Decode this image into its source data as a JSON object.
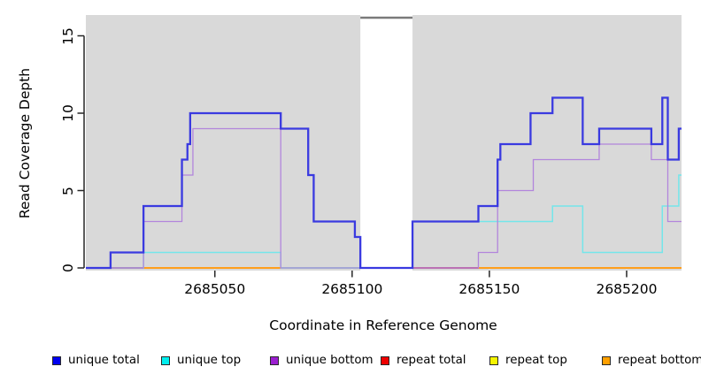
{
  "chart_data": {
    "type": "line",
    "subtype": "step-coverage",
    "xlabel": "Coordinate in Reference Genome",
    "ylabel": "Read Coverage Depth",
    "xlim": [
      2685003,
      2685220
    ],
    "ylim": [
      0,
      16.3
    ],
    "grid": false,
    "plot_bg_color": "#d9d9d9",
    "gap_region": {
      "from": 2685103,
      "to": 2685122,
      "top_border_color": "#7a7a7a"
    },
    "shaded_regions": [
      {
        "from": 2685003,
        "to": 2685103
      },
      {
        "from": 2685122,
        "to": 2685220
      }
    ],
    "x_ticks": [
      {
        "coord": 2685050,
        "label": "2685050"
      },
      {
        "coord": 2685100,
        "label": "2685100"
      },
      {
        "coord": 2685150,
        "label": "2685150"
      },
      {
        "coord": 2685200,
        "label": "2685200"
      }
    ],
    "y_ticks": [
      {
        "value": 0,
        "label": "0"
      },
      {
        "value": 5,
        "label": "5"
      },
      {
        "value": 10,
        "label": "10"
      },
      {
        "value": 15,
        "label": "15"
      }
    ],
    "legend": [
      {
        "label": "unique total",
        "color": "#0000f0"
      },
      {
        "label": "unique top",
        "color": "#00eeee"
      },
      {
        "label": "unique bottom",
        "color": "#9b1fd0"
      },
      {
        "label": "repeat total",
        "color": "#ee0000"
      },
      {
        "label": "repeat top",
        "color": "#f5f500"
      },
      {
        "label": "repeat bottom",
        "color": "#ffa000"
      }
    ],
    "baseline_zero_segments": [
      {
        "from": 2685012,
        "to": 2685024,
        "color": "#c7516f"
      },
      {
        "from": 2685024,
        "to": 2685074,
        "color": "#ff9e1c"
      },
      {
        "from": 2685074,
        "to": 2685103,
        "color": "#a6d7a7"
      },
      {
        "from": 2685122,
        "to": 2685146,
        "color": "#c7516f"
      },
      {
        "from": 2685146,
        "to": 2685220,
        "color": "#ff9e1c"
      }
    ],
    "series": [
      {
        "name": "repeat total",
        "color": "#ee0000",
        "width": 1.2,
        "draw": false,
        "points": [
          [
            2685003,
            0
          ],
          [
            2685220,
            0
          ]
        ]
      },
      {
        "name": "repeat top",
        "color": "#f5f500",
        "width": 1.2,
        "draw": false,
        "points": [
          [
            2685003,
            0
          ],
          [
            2685220,
            0
          ]
        ]
      },
      {
        "name": "repeat bottom",
        "color": "#ff9e1c",
        "width": 1.2,
        "draw": false,
        "points": [
          [
            2685003,
            0
          ],
          [
            2685220,
            0
          ]
        ]
      },
      {
        "name": "unique top",
        "color": "#74e6ea",
        "width": 1.5,
        "draw": true,
        "points": [
          [
            2685003,
            0
          ],
          [
            2685024,
            1
          ],
          [
            2685074,
            0
          ],
          [
            2685122,
            3
          ],
          [
            2685173,
            4
          ],
          [
            2685184,
            1
          ],
          [
            2685213,
            4
          ],
          [
            2685219,
            6
          ],
          [
            2685220,
            6
          ]
        ]
      },
      {
        "name": "unique bottom",
        "color": "#b285dc",
        "width": 1.3,
        "draw": true,
        "points": [
          [
            2685003,
            0
          ],
          [
            2685024,
            3
          ],
          [
            2685038,
            6
          ],
          [
            2685042,
            9
          ],
          [
            2685074,
            0
          ],
          [
            2685146,
            1
          ],
          [
            2685153,
            5
          ],
          [
            2685166,
            7
          ],
          [
            2685190,
            8
          ],
          [
            2685209,
            7
          ],
          [
            2685215,
            3
          ],
          [
            2685220,
            3
          ]
        ]
      },
      {
        "name": "unique total",
        "color": "#3a3ae0",
        "width": 2.3,
        "draw": true,
        "points": [
          [
            2685003,
            0
          ],
          [
            2685012,
            1
          ],
          [
            2685024,
            4
          ],
          [
            2685038,
            7
          ],
          [
            2685040,
            8
          ],
          [
            2685041,
            10
          ],
          [
            2685074,
            9
          ],
          [
            2685084,
            6
          ],
          [
            2685086,
            3
          ],
          [
            2685101,
            2
          ],
          [
            2685103,
            0
          ],
          [
            2685122,
            3
          ],
          [
            2685146,
            4
          ],
          [
            2685153,
            7
          ],
          [
            2685154,
            8
          ],
          [
            2685165,
            10
          ],
          [
            2685173,
            11
          ],
          [
            2685184,
            8
          ],
          [
            2685190,
            9
          ],
          [
            2685209,
            8
          ],
          [
            2685213,
            11
          ],
          [
            2685215,
            7
          ],
          [
            2685219,
            9
          ],
          [
            2685220,
            9
          ]
        ]
      }
    ],
    "axis_color": "#262626"
  }
}
